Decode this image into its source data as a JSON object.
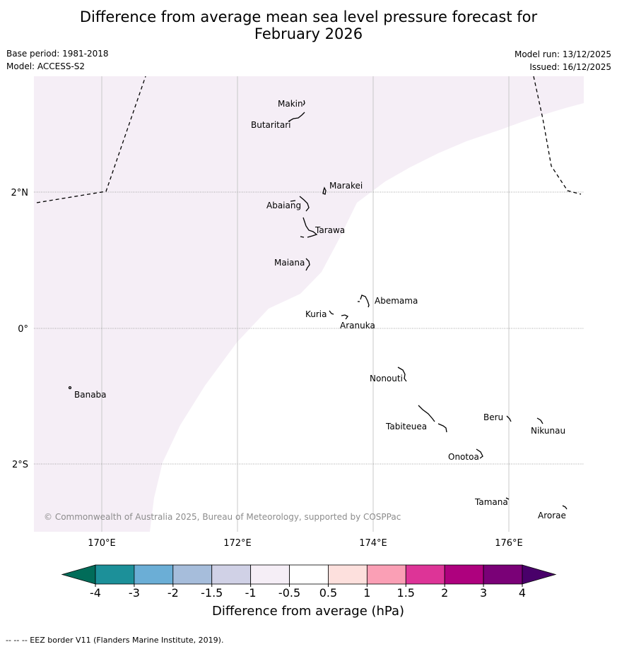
{
  "title": {
    "line1": "Difference from average mean sea level pressure forecast for",
    "line2": "February 2026"
  },
  "meta": {
    "base_period": "Base period: 1981-2018",
    "model": "Model: ACCESS-S2",
    "model_run": "Model run: 13/12/2025",
    "issued": "Issued: 16/12/2025"
  },
  "map": {
    "lon_labels": [
      "170°E",
      "172°E",
      "174°E",
      "176°E"
    ],
    "lat_labels": [
      "2°N",
      "0°",
      "2°S"
    ],
    "places": [
      "Makin",
      "Butaritari",
      "Marakei",
      "Abaiang",
      "Tarawa",
      "Maiana",
      "Abemama",
      "Kuria",
      "Aranuka",
      "Banaba",
      "Nonouti",
      "Tabiteuea",
      "Beru",
      "Nikunau",
      "Onotoa",
      "Tamana",
      "Arorae"
    ],
    "copyright": "© Commonwealth of Australia 2025, Bureau of Meteorology, supported by COSPPac",
    "shaded_region_category": "-1 to -0.5"
  },
  "colorbar": {
    "ticks": [
      "-4",
      "-3",
      "-2",
      "-1.5",
      "-1",
      "-0.5",
      "0.5",
      "1",
      "1.5",
      "2",
      "3",
      "4"
    ],
    "colors": [
      "#1c9099",
      "#6baed6",
      "#a6bddb",
      "#d0d1e6",
      "#f5eef6",
      "#ffffff",
      "#fde0dd",
      "#fa9fb5",
      "#dd3497",
      "#ae017e",
      "#7a0177"
    ],
    "under_color": "#016c59",
    "over_color": "#49006a",
    "label": "Difference from average (hPa)"
  },
  "footer": "--  --  -- EEZ border V11 (Flanders Marine Institute, 2019)."
}
